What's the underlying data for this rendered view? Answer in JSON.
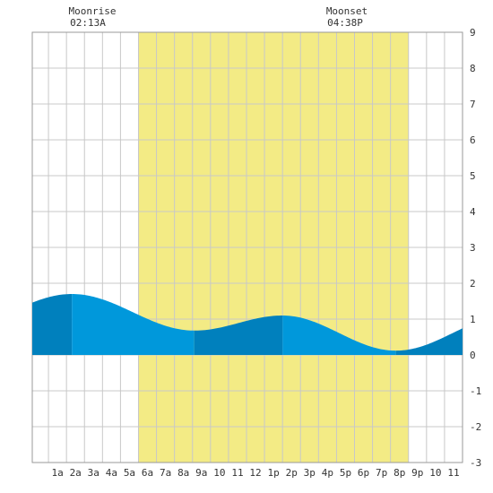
{
  "moonrise": {
    "label": "Moonrise",
    "time": "02:13A"
  },
  "moonset": {
    "label": "Moonset",
    "time": "04:38P"
  },
  "chart_data": {
    "type": "area",
    "title": "",
    "xlabel": "",
    "ylabel": "",
    "xlim": [
      -0.4,
      23.5
    ],
    "ylim": [
      -3,
      9
    ],
    "x_ticks": [
      {
        "x": 1,
        "label": "1a"
      },
      {
        "x": 2,
        "label": "2a"
      },
      {
        "x": 3,
        "label": "3a"
      },
      {
        "x": 4,
        "label": "4a"
      },
      {
        "x": 5,
        "label": "5a"
      },
      {
        "x": 6,
        "label": "6a"
      },
      {
        "x": 7,
        "label": "7a"
      },
      {
        "x": 8,
        "label": "8a"
      },
      {
        "x": 9,
        "label": "9a"
      },
      {
        "x": 10,
        "label": "10"
      },
      {
        "x": 11,
        "label": "11"
      },
      {
        "x": 12,
        "label": "12"
      },
      {
        "x": 13,
        "label": "1p"
      },
      {
        "x": 14,
        "label": "2p"
      },
      {
        "x": 15,
        "label": "3p"
      },
      {
        "x": 16,
        "label": "4p"
      },
      {
        "x": 17,
        "label": "5p"
      },
      {
        "x": 18,
        "label": "6p"
      },
      {
        "x": 19,
        "label": "7p"
      },
      {
        "x": 20,
        "label": "8p"
      },
      {
        "x": 21,
        "label": "9p"
      },
      {
        "x": 22,
        "label": "10"
      },
      {
        "x": 23,
        "label": "11"
      }
    ],
    "y_ticks": [
      -3,
      -2,
      -1,
      0,
      1,
      2,
      3,
      4,
      5,
      6,
      7,
      8,
      9
    ],
    "grid": true,
    "daylight": {
      "start": 5.5,
      "end": 20.5,
      "color": "#f3eb85"
    },
    "tide_extremes": [
      {
        "x": 1.8,
        "y": 1.7,
        "kind": "high"
      },
      {
        "x": 8.6,
        "y": 0.68,
        "kind": "low"
      },
      {
        "x": 13.5,
        "y": 1.1,
        "kind": "high"
      },
      {
        "x": 19.8,
        "y": 0.12,
        "kind": "low"
      }
    ],
    "band_boundaries": [
      1.8,
      8.6,
      13.5,
      19.8
    ],
    "colors": {
      "tide": "#0098db",
      "tide_alt": "#0080bd",
      "grid": "#c8c8c8",
      "background": "#ffffff"
    }
  }
}
